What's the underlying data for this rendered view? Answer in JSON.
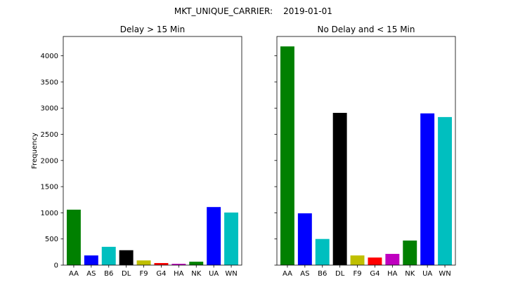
{
  "figure": {
    "suptitle_left": "MKT_UNIQUE_CARRIER:",
    "suptitle_right": "2019-01-01"
  },
  "chart_data": [
    {
      "type": "bar",
      "title": "Delay > 15 Min",
      "xlabel": "",
      "ylabel": "Frequency",
      "ylim": [
        0,
        4370
      ],
      "yticks": [
        0,
        500,
        1000,
        1500,
        2000,
        2500,
        3000,
        3500,
        4000
      ],
      "show_ytick_labels": true,
      "grid": false,
      "categories": [
        "AA",
        "AS",
        "B6",
        "DL",
        "F9",
        "G4",
        "HA",
        "NK",
        "UA",
        "WN"
      ],
      "values": [
        1060,
        185,
        350,
        285,
        90,
        40,
        25,
        65,
        1110,
        1005
      ],
      "colors": [
        "#008000",
        "#0000ff",
        "#00bfbf",
        "#000000",
        "#bfbf00",
        "#ff0000",
        "#bf00bf",
        "#008000",
        "#0000ff",
        "#00bfbf"
      ]
    },
    {
      "type": "bar",
      "title": "No Delay and < 15 Min",
      "xlabel": "",
      "ylabel": "",
      "ylim": [
        0,
        4370
      ],
      "yticks": [
        0,
        500,
        1000,
        1500,
        2000,
        2500,
        3000,
        3500,
        4000
      ],
      "show_ytick_labels": false,
      "grid": false,
      "categories": [
        "AA",
        "AS",
        "B6",
        "DL",
        "F9",
        "G4",
        "HA",
        "NK",
        "UA",
        "WN"
      ],
      "values": [
        4180,
        990,
        500,
        2910,
        185,
        145,
        215,
        470,
        2900,
        2830
      ],
      "colors": [
        "#008000",
        "#0000ff",
        "#00bfbf",
        "#000000",
        "#bfbf00",
        "#ff0000",
        "#bf00bf",
        "#008000",
        "#0000ff",
        "#00bfbf"
      ]
    }
  ]
}
